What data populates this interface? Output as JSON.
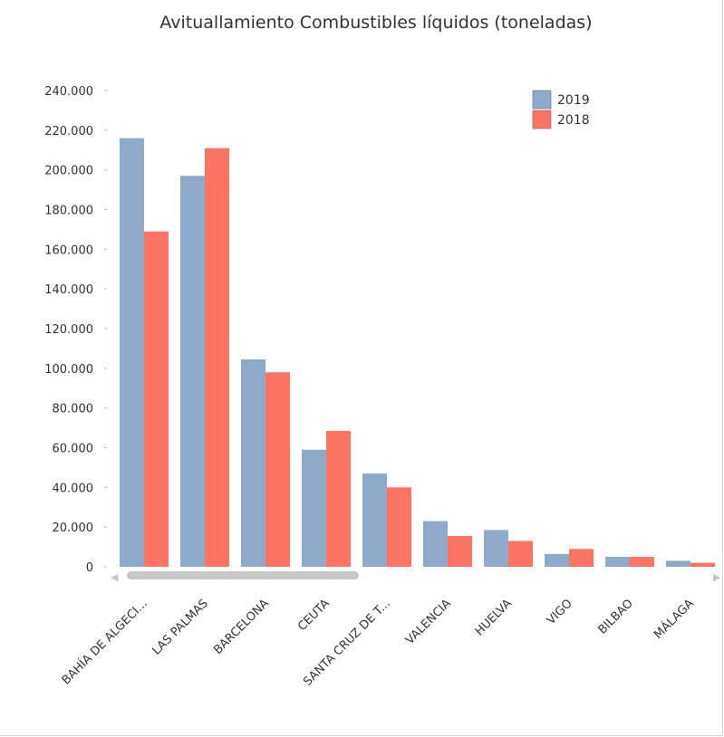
{
  "chart_data": {
    "type": "bar",
    "title": "Avituallamiento Combustibles líquidos (toneladas)",
    "categories": [
      "BAHÍA DE ALGECI...",
      "LAS PALMAS",
      "BARCELONA",
      "CEUTA",
      "SANTA CRUZ DE T...",
      "VALENCIA",
      "HUELVA",
      "VIGO",
      "BILBAO",
      "MÁLAGA"
    ],
    "series": [
      {
        "name": "2019",
        "color": "#8eaacb",
        "values": [
          216000,
          197000,
          104500,
          59000,
          47000,
          23000,
          18500,
          6500,
          5000,
          3000
        ]
      },
      {
        "name": "2018",
        "color": "#fd7461",
        "values": [
          169000,
          211000,
          98000,
          68500,
          40000,
          15500,
          13000,
          9000,
          5000,
          2000
        ]
      }
    ],
    "yticks": [
      "0",
      "20.000",
      "40.000",
      "60.000",
      "80.000",
      "100.000",
      "120.000",
      "140.000",
      "160.000",
      "180.000",
      "200.000",
      "220.000",
      "240.000"
    ],
    "ylim": [
      0,
      240000
    ],
    "xlabel": "",
    "ylabel": "",
    "legend": "top-right",
    "grid": false
  },
  "scrollbar": {
    "left_arrow": "◀",
    "right_arrow": "▶"
  }
}
